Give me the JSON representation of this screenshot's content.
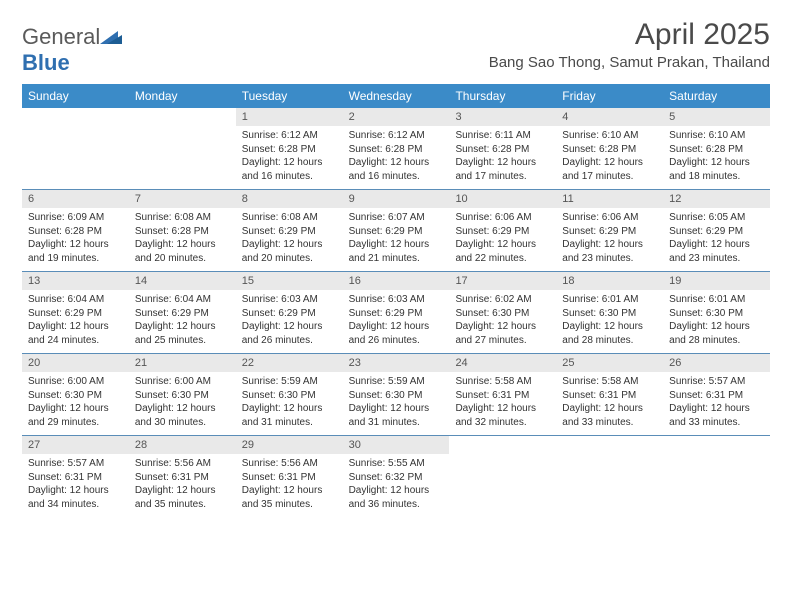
{
  "logo": {
    "text1": "General",
    "text2": "Blue"
  },
  "title": "April 2025",
  "location": "Bang Sao Thong, Samut Prakan, Thailand",
  "colors": {
    "header_bg": "#3b8bc8",
    "header_text": "#ffffff",
    "daynum_bg": "#e9e9e9",
    "week_border": "#5a8db8",
    "text": "#333333",
    "logo_gray": "#5a5a5a",
    "logo_blue": "#2f6fb0"
  },
  "day_names": [
    "Sunday",
    "Monday",
    "Tuesday",
    "Wednesday",
    "Thursday",
    "Friday",
    "Saturday"
  ],
  "weeks": [
    [
      {
        "n": "",
        "sunrise": "",
        "sunset": "",
        "day": ""
      },
      {
        "n": "",
        "sunrise": "",
        "sunset": "",
        "day": ""
      },
      {
        "n": "1",
        "sunrise": "Sunrise: 6:12 AM",
        "sunset": "Sunset: 6:28 PM",
        "day": "Daylight: 12 hours and 16 minutes."
      },
      {
        "n": "2",
        "sunrise": "Sunrise: 6:12 AM",
        "sunset": "Sunset: 6:28 PM",
        "day": "Daylight: 12 hours and 16 minutes."
      },
      {
        "n": "3",
        "sunrise": "Sunrise: 6:11 AM",
        "sunset": "Sunset: 6:28 PM",
        "day": "Daylight: 12 hours and 17 minutes."
      },
      {
        "n": "4",
        "sunrise": "Sunrise: 6:10 AM",
        "sunset": "Sunset: 6:28 PM",
        "day": "Daylight: 12 hours and 17 minutes."
      },
      {
        "n": "5",
        "sunrise": "Sunrise: 6:10 AM",
        "sunset": "Sunset: 6:28 PM",
        "day": "Daylight: 12 hours and 18 minutes."
      }
    ],
    [
      {
        "n": "6",
        "sunrise": "Sunrise: 6:09 AM",
        "sunset": "Sunset: 6:28 PM",
        "day": "Daylight: 12 hours and 19 minutes."
      },
      {
        "n": "7",
        "sunrise": "Sunrise: 6:08 AM",
        "sunset": "Sunset: 6:28 PM",
        "day": "Daylight: 12 hours and 20 minutes."
      },
      {
        "n": "8",
        "sunrise": "Sunrise: 6:08 AM",
        "sunset": "Sunset: 6:29 PM",
        "day": "Daylight: 12 hours and 20 minutes."
      },
      {
        "n": "9",
        "sunrise": "Sunrise: 6:07 AM",
        "sunset": "Sunset: 6:29 PM",
        "day": "Daylight: 12 hours and 21 minutes."
      },
      {
        "n": "10",
        "sunrise": "Sunrise: 6:06 AM",
        "sunset": "Sunset: 6:29 PM",
        "day": "Daylight: 12 hours and 22 minutes."
      },
      {
        "n": "11",
        "sunrise": "Sunrise: 6:06 AM",
        "sunset": "Sunset: 6:29 PM",
        "day": "Daylight: 12 hours and 23 minutes."
      },
      {
        "n": "12",
        "sunrise": "Sunrise: 6:05 AM",
        "sunset": "Sunset: 6:29 PM",
        "day": "Daylight: 12 hours and 23 minutes."
      }
    ],
    [
      {
        "n": "13",
        "sunrise": "Sunrise: 6:04 AM",
        "sunset": "Sunset: 6:29 PM",
        "day": "Daylight: 12 hours and 24 minutes."
      },
      {
        "n": "14",
        "sunrise": "Sunrise: 6:04 AM",
        "sunset": "Sunset: 6:29 PM",
        "day": "Daylight: 12 hours and 25 minutes."
      },
      {
        "n": "15",
        "sunrise": "Sunrise: 6:03 AM",
        "sunset": "Sunset: 6:29 PM",
        "day": "Daylight: 12 hours and 26 minutes."
      },
      {
        "n": "16",
        "sunrise": "Sunrise: 6:03 AM",
        "sunset": "Sunset: 6:29 PM",
        "day": "Daylight: 12 hours and 26 minutes."
      },
      {
        "n": "17",
        "sunrise": "Sunrise: 6:02 AM",
        "sunset": "Sunset: 6:30 PM",
        "day": "Daylight: 12 hours and 27 minutes."
      },
      {
        "n": "18",
        "sunrise": "Sunrise: 6:01 AM",
        "sunset": "Sunset: 6:30 PM",
        "day": "Daylight: 12 hours and 28 minutes."
      },
      {
        "n": "19",
        "sunrise": "Sunrise: 6:01 AM",
        "sunset": "Sunset: 6:30 PM",
        "day": "Daylight: 12 hours and 28 minutes."
      }
    ],
    [
      {
        "n": "20",
        "sunrise": "Sunrise: 6:00 AM",
        "sunset": "Sunset: 6:30 PM",
        "day": "Daylight: 12 hours and 29 minutes."
      },
      {
        "n": "21",
        "sunrise": "Sunrise: 6:00 AM",
        "sunset": "Sunset: 6:30 PM",
        "day": "Daylight: 12 hours and 30 minutes."
      },
      {
        "n": "22",
        "sunrise": "Sunrise: 5:59 AM",
        "sunset": "Sunset: 6:30 PM",
        "day": "Daylight: 12 hours and 31 minutes."
      },
      {
        "n": "23",
        "sunrise": "Sunrise: 5:59 AM",
        "sunset": "Sunset: 6:30 PM",
        "day": "Daylight: 12 hours and 31 minutes."
      },
      {
        "n": "24",
        "sunrise": "Sunrise: 5:58 AM",
        "sunset": "Sunset: 6:31 PM",
        "day": "Daylight: 12 hours and 32 minutes."
      },
      {
        "n": "25",
        "sunrise": "Sunrise: 5:58 AM",
        "sunset": "Sunset: 6:31 PM",
        "day": "Daylight: 12 hours and 33 minutes."
      },
      {
        "n": "26",
        "sunrise": "Sunrise: 5:57 AM",
        "sunset": "Sunset: 6:31 PM",
        "day": "Daylight: 12 hours and 33 minutes."
      }
    ],
    [
      {
        "n": "27",
        "sunrise": "Sunrise: 5:57 AM",
        "sunset": "Sunset: 6:31 PM",
        "day": "Daylight: 12 hours and 34 minutes."
      },
      {
        "n": "28",
        "sunrise": "Sunrise: 5:56 AM",
        "sunset": "Sunset: 6:31 PM",
        "day": "Daylight: 12 hours and 35 minutes."
      },
      {
        "n": "29",
        "sunrise": "Sunrise: 5:56 AM",
        "sunset": "Sunset: 6:31 PM",
        "day": "Daylight: 12 hours and 35 minutes."
      },
      {
        "n": "30",
        "sunrise": "Sunrise: 5:55 AM",
        "sunset": "Sunset: 6:32 PM",
        "day": "Daylight: 12 hours and 36 minutes."
      },
      {
        "n": "",
        "sunrise": "",
        "sunset": "",
        "day": ""
      },
      {
        "n": "",
        "sunrise": "",
        "sunset": "",
        "day": ""
      },
      {
        "n": "",
        "sunrise": "",
        "sunset": "",
        "day": ""
      }
    ]
  ]
}
